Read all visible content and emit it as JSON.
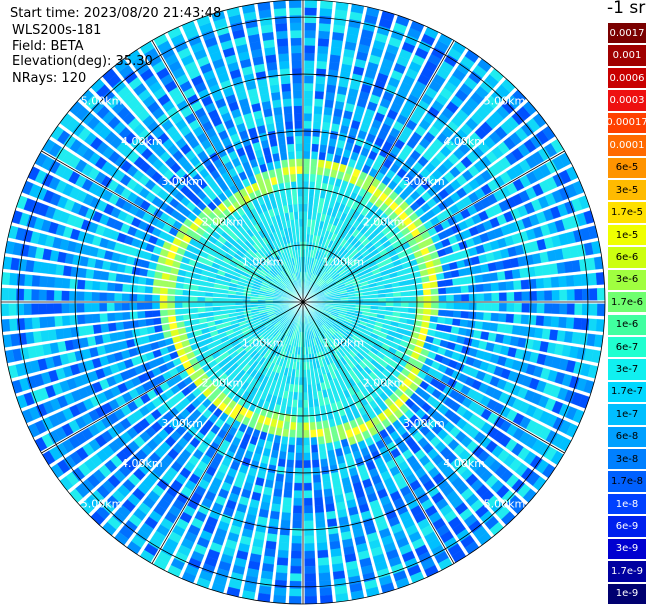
{
  "header": {
    "start_time": "Start time: 2023/08/20 21:43:48",
    "site": "WLS200s-181",
    "field": "Field: BETA",
    "elevation": "Elevation(deg): 35.30",
    "nrays": "NRays: 120"
  },
  "legend": {
    "title": "-1 sr",
    "items": [
      {
        "label": "0.0017",
        "color": "#7a0000",
        "text": "#ffffff"
      },
      {
        "label": "0.001",
        "color": "#a00000",
        "text": "#ffffff"
      },
      {
        "label": "0.0006",
        "color": "#c80000",
        "text": "#ffffff"
      },
      {
        "label": "0.0003",
        "color": "#ee1010",
        "text": "#ffffff"
      },
      {
        "label": "0.00017",
        "color": "#ff4000",
        "text": "#ffffff"
      },
      {
        "label": "0.0001",
        "color": "#ff6a00",
        "text": "#ffffff"
      },
      {
        "label": "6e-5",
        "color": "#ff9400",
        "text": "#000000"
      },
      {
        "label": "3e-5",
        "color": "#ffbb00",
        "text": "#000000"
      },
      {
        "label": "1.7e-5",
        "color": "#ffe000",
        "text": "#000000"
      },
      {
        "label": "1e-5",
        "color": "#f0ff00",
        "text": "#000000"
      },
      {
        "label": "6e-6",
        "color": "#ccff10",
        "text": "#000000"
      },
      {
        "label": "3e-6",
        "color": "#a0ff40",
        "text": "#000000"
      },
      {
        "label": "1.7e-6",
        "color": "#70ff70",
        "text": "#000000"
      },
      {
        "label": "1e-6",
        "color": "#40ffa0",
        "text": "#000000"
      },
      {
        "label": "6e-7",
        "color": "#20ffd0",
        "text": "#000000"
      },
      {
        "label": "3e-7",
        "color": "#10f0f0",
        "text": "#000000"
      },
      {
        "label": "1.7e-7",
        "color": "#00d8ff",
        "text": "#000000"
      },
      {
        "label": "1e-7",
        "color": "#00bfff",
        "text": "#000000"
      },
      {
        "label": "6e-8",
        "color": "#00a0ff",
        "text": "#000000"
      },
      {
        "label": "3e-8",
        "color": "#0080ff",
        "text": "#000000"
      },
      {
        "label": "1.7e-8",
        "color": "#0060ff",
        "text": "#000000"
      },
      {
        "label": "1e-8",
        "color": "#0040ff",
        "text": "#ffffff"
      },
      {
        "label": "6e-9",
        "color": "#0020ee",
        "text": "#ffffff"
      },
      {
        "label": "3e-9",
        "color": "#0000d0",
        "text": "#ffffff"
      },
      {
        "label": "1.7e-9",
        "color": "#0000a0",
        "text": "#ffffff"
      },
      {
        "label": "1e-9",
        "color": "#000070",
        "text": "#ffffff"
      }
    ]
  },
  "plot": {
    "ray_count": 120,
    "max_range_km": 5.3,
    "ring_ranges_km": [
      1,
      2,
      3,
      4,
      5
    ],
    "ring_labels": [
      "1.00km",
      "2.00km",
      "3.00km",
      "4.00km",
      "5.00km"
    ],
    "ring_label_bearings_deg": [
      -45,
      45,
      135,
      225
    ],
    "spoke_bearings_deg": [
      0,
      30,
      60,
      90,
      120,
      150,
      180,
      210,
      240,
      270,
      300,
      330
    ],
    "aerosol_layer_range_km": 2.3
  }
}
